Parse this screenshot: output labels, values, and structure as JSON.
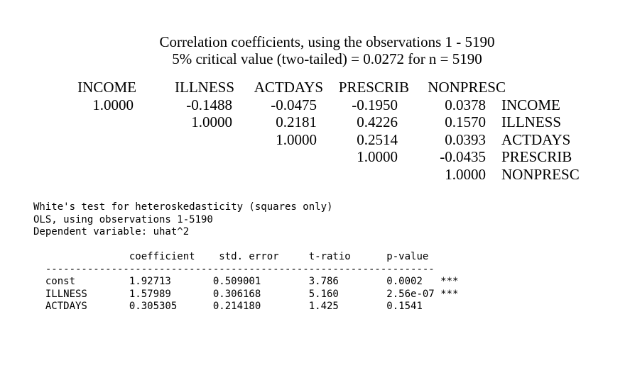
{
  "colors": {
    "background": "#ffffff",
    "text": "#000000"
  },
  "correlation_matrix": {
    "title_line1": "Correlation coefficients, using the observations 1 - 5190",
    "title_line2": "5% critical value (two-tailed) = 0.0272 for n = 5190",
    "column_headers": [
      "INCOME",
      "ILLNESS",
      "ACTDAYS",
      "PRESCRIB",
      "NONPRESC"
    ],
    "rows": [
      {
        "values": [
          "1.0000",
          "-0.1488",
          "-0.0475",
          "-0.1950",
          "0.0378"
        ],
        "label": "INCOME"
      },
      {
        "values": [
          "",
          "1.0000",
          "0.2181",
          "0.4226",
          "0.1570"
        ],
        "label": "ILLNESS"
      },
      {
        "values": [
          "",
          "",
          "1.0000",
          "0.2514",
          "0.0393"
        ],
        "label": "ACTDAYS"
      },
      {
        "values": [
          "",
          "",
          "",
          "1.0000",
          "-0.0435"
        ],
        "label": "PRESCRIB"
      },
      {
        "values": [
          "",
          "",
          "",
          "",
          "1.0000"
        ],
        "label": "NONPRESC"
      }
    ]
  },
  "white_test": {
    "intro_lines": [
      "White's test for heteroskedasticity (squares only)",
      "OLS, using observations 1-5190",
      "Dependent variable: uhat^2"
    ],
    "table": {
      "columns": [
        "coefficient",
        "std. error",
        "t-ratio",
        "p-value"
      ],
      "rows": [
        {
          "name": "const",
          "coefficient": "1.92713",
          "std_error": "0.509001",
          "t_ratio": "3.786",
          "p_value": "0.0002",
          "significance": "***"
        },
        {
          "name": "ILLNESS",
          "coefficient": "1.57989",
          "std_error": "0.306168",
          "t_ratio": "5.160",
          "p_value": "2.56e-07",
          "significance": "***"
        },
        {
          "name": "ACTDAYS",
          "coefficient": "0.305305",
          "std_error": "0.214180",
          "t_ratio": "1.425",
          "p_value": "0.1541",
          "significance": ""
        }
      ]
    }
  }
}
